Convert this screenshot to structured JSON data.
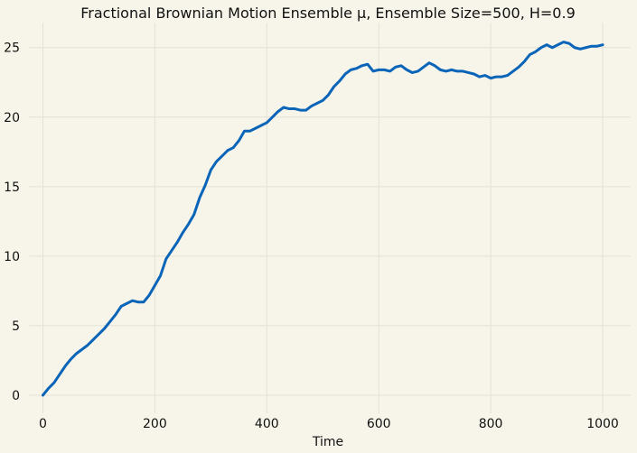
{
  "chart_data": {
    "type": "line",
    "title": "Fractional Brownian Motion Ensemble μ, Ensemble Size=500, H=0.9",
    "xlabel": "Time",
    "ylabel": "",
    "xlim": [
      -25,
      1050
    ],
    "ylim": [
      -1.3,
      26.8
    ],
    "xticks": [
      0,
      200,
      400,
      600,
      800,
      1000
    ],
    "yticks": [
      0,
      5,
      10,
      15,
      20,
      25
    ],
    "grid": true,
    "colors": {
      "background": "#f7f5ea",
      "grid": "#e4e1d6",
      "line": "#0a64b8"
    },
    "series": [
      {
        "x": [
          0,
          10,
          20,
          30,
          40,
          50,
          60,
          70,
          80,
          90,
          100,
          110,
          120,
          130,
          140,
          150,
          160,
          170,
          180,
          190,
          200,
          210,
          220,
          230,
          240,
          250,
          260,
          270,
          280,
          290,
          300,
          310,
          320,
          330,
          340,
          350,
          360,
          370,
          380,
          390,
          400,
          410,
          420,
          430,
          440,
          450,
          460,
          470,
          480,
          490,
          500,
          510,
          520,
          530,
          540,
          550,
          560,
          570,
          580,
          590,
          600,
          610,
          620,
          630,
          640,
          650,
          660,
          670,
          680,
          690,
          700,
          710,
          720,
          730,
          740,
          750,
          760,
          770,
          780,
          790,
          800,
          810,
          820,
          830,
          840,
          850,
          860,
          870,
          880,
          890,
          900,
          910,
          920,
          930,
          940,
          950,
          960,
          970,
          980,
          990,
          1000
        ],
        "values": [
          0.0,
          0.5,
          0.9,
          1.5,
          2.1,
          2.6,
          3.0,
          3.3,
          3.6,
          4.0,
          4.4,
          4.8,
          5.3,
          5.8,
          6.4,
          6.6,
          6.8,
          6.7,
          6.7,
          7.2,
          7.9,
          8.6,
          9.8,
          10.4,
          11.0,
          11.7,
          12.3,
          13.0,
          14.2,
          15.1,
          16.2,
          16.8,
          17.2,
          17.6,
          17.8,
          18.3,
          19.0,
          19.0,
          19.2,
          19.4,
          19.6,
          20.0,
          20.4,
          20.7,
          20.6,
          20.6,
          20.5,
          20.5,
          20.8,
          21.0,
          21.2,
          21.6,
          22.2,
          22.6,
          23.1,
          23.4,
          23.5,
          23.7,
          23.8,
          23.3,
          23.4,
          23.4,
          23.3,
          23.6,
          23.7,
          23.4,
          23.2,
          23.3,
          23.6,
          23.9,
          23.7,
          23.4,
          23.3,
          23.4,
          23.3,
          23.3,
          23.2,
          23.1,
          22.9,
          23.0,
          22.8,
          22.9,
          22.9,
          23.0,
          23.3,
          23.6,
          24.0,
          24.5,
          24.7,
          25.0,
          25.2,
          25.0,
          25.2,
          25.4,
          25.3,
          25.0,
          24.9,
          25.0,
          25.1,
          25.1,
          25.2
        ]
      }
    ]
  }
}
